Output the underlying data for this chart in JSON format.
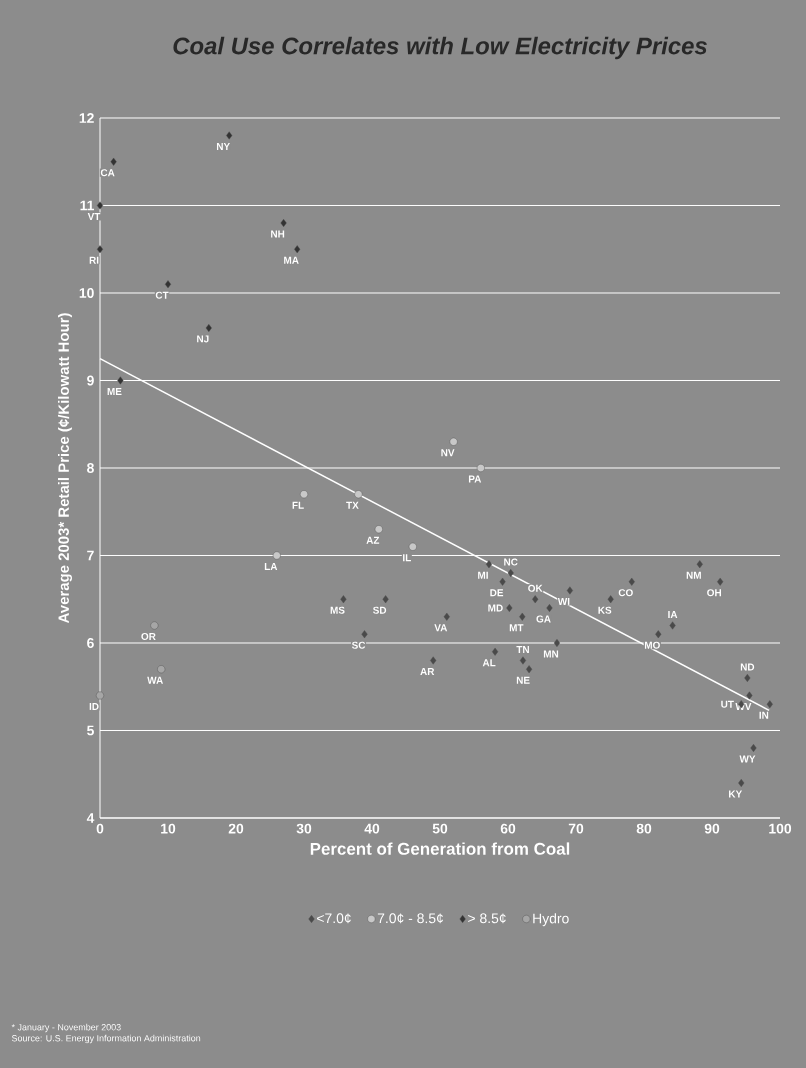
{
  "chart_data": {
    "type": "scatter",
    "title": "Coal Use Correlates with Low Electricity Prices",
    "xlabel": "Percent of Generation from Coal",
    "ylabel": "Average 2003* Retail Price (¢/Kilowatt Hour)",
    "xlim": [
      0,
      100
    ],
    "ylim": [
      4,
      12
    ],
    "xticks": [
      0,
      10,
      20,
      30,
      40,
      50,
      60,
      70,
      80,
      90,
      100
    ],
    "yticks": [
      4,
      5,
      6,
      7,
      8,
      9,
      10,
      11,
      12
    ],
    "grid": "y",
    "legend": "bottom",
    "series": [
      {
        "name": "<7.0¢",
        "color": "#4a4a4a",
        "marker": "diamond",
        "x": [
          98.5,
          95.2,
          95.5,
          94.3,
          96.1,
          94.3,
          91.2,
          88.2,
          84.2,
          82.1,
          78.2,
          75.1,
          69.1,
          67.2,
          66.1,
          64.0,
          62.1,
          63.1,
          62.2,
          60.4,
          59.2,
          60.2,
          58.1,
          57.2,
          51.0,
          49.0,
          42.0,
          38.9,
          35.8
        ],
        "values": [
          5.3,
          5.6,
          5.4,
          5.3,
          4.8,
          4.4,
          6.7,
          6.9,
          6.2,
          6.1,
          6.7,
          6.5,
          6.6,
          6.0,
          6.4,
          6.5,
          6.3,
          5.7,
          5.8,
          6.8,
          6.7,
          6.4,
          5.9,
          6.9,
          6.3,
          5.8,
          6.5,
          6.1,
          6.5
        ]
      },
      {
        "name": "7.0¢ - 8.5¢",
        "color": "#c8c8c8",
        "marker": "circle",
        "x": [
          56,
          52,
          46,
          41,
          38,
          30,
          26
        ],
        "values": [
          8.0,
          8.3,
          7.1,
          7.3,
          7.7,
          7.7,
          7.0
        ]
      },
      {
        "name": "> 8.5¢",
        "color": "#333333",
        "marker": "diamond",
        "x": [
          19,
          16,
          10,
          2,
          0,
          0,
          3,
          27,
          29
        ],
        "values": [
          11.8,
          9.6,
          10.1,
          11.5,
          11.0,
          10.5,
          9.0,
          10.8,
          10.5
        ]
      },
      {
        "name": "Hydro",
        "color": "#a6a6a6",
        "marker": "circle",
        "x": [
          8,
          9,
          0
        ],
        "values": [
          6.2,
          5.7,
          5.4
        ]
      },
      {
        "type": "line",
        "color": "#ffffff",
        "marker": "none",
        "x": [
          0,
          98.4
        ],
        "values": [
          9.25,
          5.23
        ]
      }
    ],
    "annotations": [
      "* January - November 2003",
      "Source: U.S. Energy Information Administration",
      {
        "text": "IN",
        "x": 98.5,
        "y": 5.3
      },
      {
        "text": "ND",
        "x": 95.2,
        "y": 5.6
      },
      {
        "text": "WV",
        "x": 95.5,
        "y": 5.4
      },
      {
        "text": "UT",
        "x": 94.3,
        "y": 5.3
      },
      {
        "text": "WY",
        "x": 96.1,
        "y": 4.8
      },
      {
        "text": "KY",
        "x": 94.3,
        "y": 4.4
      },
      {
        "text": "OH",
        "x": 91.2,
        "y": 6.7
      },
      {
        "text": "NM",
        "x": 88.2,
        "y": 6.9
      },
      {
        "text": "IA",
        "x": 84.2,
        "y": 6.2
      },
      {
        "text": "MO",
        "x": 82.1,
        "y": 6.1
      },
      {
        "text": "CO",
        "x": 78.2,
        "y": 6.7
      },
      {
        "text": "KS",
        "x": 75.1,
        "y": 6.5
      },
      {
        "text": "WI",
        "x": 69.1,
        "y": 6.6
      },
      {
        "text": "MN",
        "x": 67.2,
        "y": 6.0
      },
      {
        "text": "GA",
        "x": 66.1,
        "y": 6.4
      },
      {
        "text": "OK",
        "x": 64.0,
        "y": 6.5
      },
      {
        "text": "MT",
        "x": 62.1,
        "y": 6.3
      },
      {
        "text": "NE",
        "x": 63.1,
        "y": 5.7
      },
      {
        "text": "TN",
        "x": 62.2,
        "y": 5.8
      },
      {
        "text": "NC",
        "x": 60.4,
        "y": 6.8
      },
      {
        "text": "DE",
        "x": 59.2,
        "y": 6.7
      },
      {
        "text": "MD",
        "x": 60.2,
        "y": 6.4
      },
      {
        "text": "AL",
        "x": 58.1,
        "y": 5.9
      },
      {
        "text": "MI",
        "x": 57.2,
        "y": 6.9
      },
      {
        "text": "VA",
        "x": 51.0,
        "y": 6.3
      },
      {
        "text": "AR",
        "x": 49.0,
        "y": 5.8
      },
      {
        "text": "SD",
        "x": 42.0,
        "y": 6.5
      },
      {
        "text": "SC",
        "x": 38.9,
        "y": 6.1
      },
      {
        "text": "MS",
        "x": 35.8,
        "y": 6.5
      },
      {
        "text": "PA",
        "x": 56,
        "y": 8.0
      },
      {
        "text": "NV",
        "x": 52,
        "y": 8.3
      },
      {
        "text": "IL",
        "x": 46,
        "y": 7.1
      },
      {
        "text": "AZ",
        "x": 41,
        "y": 7.3
      },
      {
        "text": "TX",
        "x": 38,
        "y": 7.7
      },
      {
        "text": "FL",
        "x": 30,
        "y": 7.7
      },
      {
        "text": "LA",
        "x": 26,
        "y": 7.0
      },
      {
        "text": "NY",
        "x": 19,
        "y": 11.8
      },
      {
        "text": "NJ",
        "x": 16,
        "y": 9.6
      },
      {
        "text": "CT",
        "x": 10,
        "y": 10.1
      },
      {
        "text": "CA",
        "x": 2,
        "y": 11.5
      },
      {
        "text": "VT",
        "x": 0,
        "y": 11.0
      },
      {
        "text": "RI",
        "x": 0,
        "y": 10.5
      },
      {
        "text": "ME",
        "x": 3,
        "y": 9.0
      },
      {
        "text": "NH",
        "x": 27,
        "y": 10.8
      },
      {
        "text": "MA",
        "x": 29,
        "y": 10.5
      },
      {
        "text": "OR",
        "x": 8,
        "y": 6.2
      },
      {
        "text": "WA",
        "x": 9,
        "y": 5.7
      },
      {
        "text": "ID",
        "x": 0,
        "y": 5.4
      }
    ]
  }
}
